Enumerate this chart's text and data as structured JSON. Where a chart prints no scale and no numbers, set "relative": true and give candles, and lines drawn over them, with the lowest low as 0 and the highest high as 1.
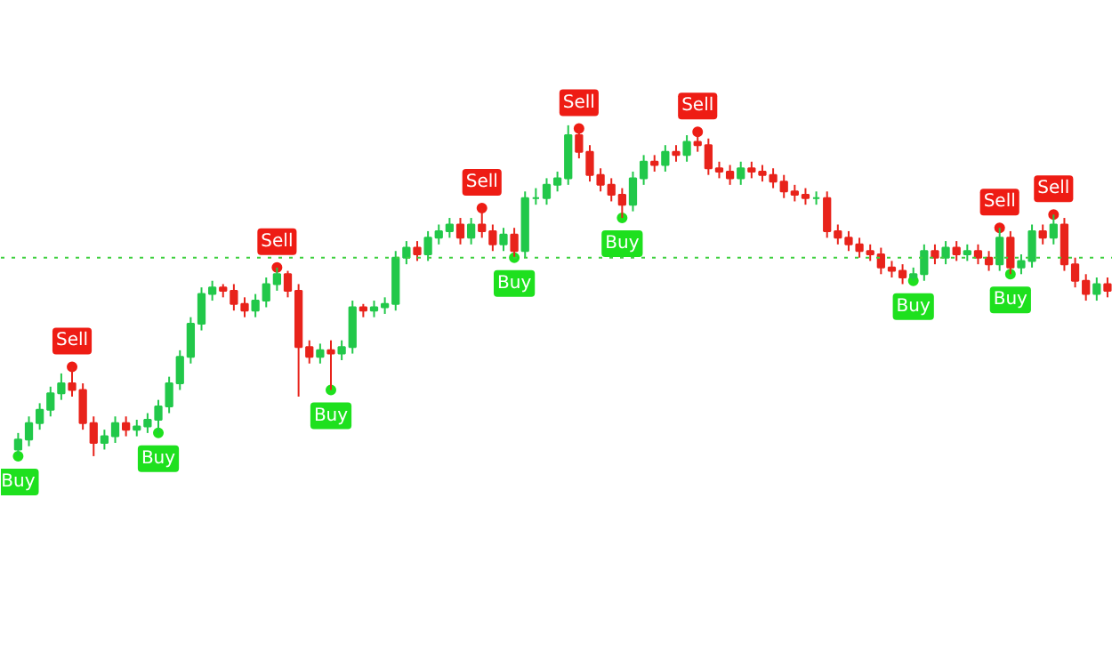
{
  "chart_data": {
    "type": "candlestick",
    "relative": true,
    "categories": [
      null,
      null,
      null,
      null,
      null,
      null,
      null,
      null,
      null,
      null,
      null,
      null,
      null,
      null,
      null,
      null,
      null,
      null,
      null,
      null,
      null,
      null,
      null,
      null,
      null,
      null,
      null,
      null,
      null,
      null,
      null,
      null,
      null,
      null,
      null,
      null,
      null,
      null,
      null,
      null,
      null,
      null,
      null,
      null,
      null,
      null,
      null,
      null,
      null,
      null,
      null,
      null,
      null,
      null,
      null,
      null,
      null,
      null,
      null,
      null,
      null,
      null,
      null,
      null,
      null,
      null,
      null,
      null,
      null,
      null,
      null,
      null,
      null,
      null,
      null,
      null,
      null,
      null,
      null,
      null,
      null,
      null,
      null,
      null,
      null,
      null,
      null,
      null,
      null,
      null,
      null,
      null,
      null,
      null,
      null,
      null,
      null,
      null,
      null,
      null,
      null,
      null
    ],
    "ohlc": [
      [
        0.02,
        0.07,
        0.0,
        0.05
      ],
      [
        0.05,
        0.12,
        0.03,
        0.1
      ],
      [
        0.1,
        0.16,
        0.08,
        0.14
      ],
      [
        0.14,
        0.21,
        0.12,
        0.19
      ],
      [
        0.19,
        0.25,
        0.17,
        0.22
      ],
      [
        0.22,
        0.27,
        0.18,
        0.2
      ],
      [
        0.2,
        0.22,
        0.08,
        0.1
      ],
      [
        0.1,
        0.12,
        0.0,
        0.04
      ],
      [
        0.04,
        0.08,
        0.02,
        0.06
      ],
      [
        0.06,
        0.12,
        0.04,
        0.1
      ],
      [
        0.1,
        0.12,
        0.06,
        0.08
      ],
      [
        0.08,
        0.11,
        0.06,
        0.09
      ],
      [
        0.09,
        0.13,
        0.07,
        0.11
      ],
      [
        0.11,
        0.17,
        0.07,
        0.15
      ],
      [
        0.15,
        0.24,
        0.13,
        0.22
      ],
      [
        0.22,
        0.32,
        0.2,
        0.3
      ],
      [
        0.3,
        0.42,
        0.28,
        0.4
      ],
      [
        0.4,
        0.51,
        0.38,
        0.49
      ],
      [
        0.49,
        0.53,
        0.47,
        0.51
      ],
      [
        0.51,
        0.52,
        0.48,
        0.5
      ],
      [
        0.5,
        0.52,
        0.44,
        0.46
      ],
      [
        0.46,
        0.48,
        0.42,
        0.44
      ],
      [
        0.44,
        0.49,
        0.42,
        0.47
      ],
      [
        0.47,
        0.54,
        0.45,
        0.52
      ],
      [
        0.52,
        0.57,
        0.5,
        0.55
      ],
      [
        0.55,
        0.56,
        0.48,
        0.5
      ],
      [
        0.5,
        0.52,
        0.18,
        0.33
      ],
      [
        0.33,
        0.35,
        0.28,
        0.3
      ],
      [
        0.3,
        0.34,
        0.28,
        0.32
      ],
      [
        0.32,
        0.35,
        0.2,
        0.31
      ],
      [
        0.31,
        0.35,
        0.29,
        0.33
      ],
      [
        0.33,
        0.47,
        0.31,
        0.45
      ],
      [
        0.45,
        0.46,
        0.42,
        0.44
      ],
      [
        0.44,
        0.47,
        0.42,
        0.45
      ],
      [
        0.45,
        0.48,
        0.43,
        0.46
      ],
      [
        0.46,
        0.62,
        0.44,
        0.6
      ],
      [
        0.6,
        0.65,
        0.58,
        0.63
      ],
      [
        0.63,
        0.65,
        0.59,
        0.61
      ],
      [
        0.61,
        0.68,
        0.59,
        0.66
      ],
      [
        0.66,
        0.7,
        0.64,
        0.68
      ],
      [
        0.68,
        0.72,
        0.66,
        0.7
      ],
      [
        0.7,
        0.72,
        0.64,
        0.66
      ],
      [
        0.66,
        0.72,
        0.64,
        0.7
      ],
      [
        0.7,
        0.75,
        0.66,
        0.68
      ],
      [
        0.68,
        0.7,
        0.62,
        0.64
      ],
      [
        0.64,
        0.69,
        0.62,
        0.67
      ],
      [
        0.67,
        0.69,
        0.6,
        0.62
      ],
      [
        0.62,
        0.8,
        0.6,
        0.78
      ],
      [
        0.78,
        0.81,
        0.76,
        0.78
      ],
      [
        0.78,
        0.84,
        0.76,
        0.82
      ],
      [
        0.82,
        0.86,
        0.8,
        0.84
      ],
      [
        0.84,
        1.0,
        0.82,
        0.97
      ],
      [
        0.97,
        0.99,
        0.9,
        0.92
      ],
      [
        0.92,
        0.94,
        0.83,
        0.85
      ],
      [
        0.85,
        0.87,
        0.8,
        0.82
      ],
      [
        0.82,
        0.84,
        0.77,
        0.79
      ],
      [
        0.79,
        0.81,
        0.72,
        0.76
      ],
      [
        0.76,
        0.86,
        0.74,
        0.84
      ],
      [
        0.84,
        0.91,
        0.82,
        0.89
      ],
      [
        0.89,
        0.91,
        0.86,
        0.88
      ],
      [
        0.88,
        0.94,
        0.86,
        0.92
      ],
      [
        0.92,
        0.94,
        0.89,
        0.91
      ],
      [
        0.91,
        0.97,
        0.89,
        0.95
      ],
      [
        0.95,
        0.98,
        0.92,
        0.94
      ],
      [
        0.94,
        0.96,
        0.85,
        0.87
      ],
      [
        0.87,
        0.89,
        0.84,
        0.86
      ],
      [
        0.86,
        0.88,
        0.82,
        0.84
      ],
      [
        0.84,
        0.89,
        0.82,
        0.87
      ],
      [
        0.87,
        0.89,
        0.84,
        0.86
      ],
      [
        0.86,
        0.88,
        0.83,
        0.85
      ],
      [
        0.85,
        0.87,
        0.81,
        0.83
      ],
      [
        0.83,
        0.85,
        0.78,
        0.8
      ],
      [
        0.8,
        0.82,
        0.77,
        0.79
      ],
      [
        0.79,
        0.81,
        0.76,
        0.78
      ],
      [
        0.78,
        0.8,
        0.76,
        0.78
      ],
      [
        0.78,
        0.8,
        0.66,
        0.68
      ],
      [
        0.68,
        0.7,
        0.64,
        0.66
      ],
      [
        0.66,
        0.68,
        0.62,
        0.64
      ],
      [
        0.64,
        0.66,
        0.6,
        0.62
      ],
      [
        0.62,
        0.64,
        0.59,
        0.61
      ],
      [
        0.61,
        0.63,
        0.55,
        0.57
      ],
      [
        0.57,
        0.59,
        0.54,
        0.56
      ],
      [
        0.56,
        0.58,
        0.52,
        0.54
      ],
      [
        0.54,
        0.57,
        0.53,
        0.55
      ],
      [
        0.55,
        0.64,
        0.53,
        0.62
      ],
      [
        0.62,
        0.64,
        0.58,
        0.6
      ],
      [
        0.6,
        0.65,
        0.58,
        0.63
      ],
      [
        0.63,
        0.65,
        0.59,
        0.61
      ],
      [
        0.61,
        0.64,
        0.59,
        0.62
      ],
      [
        0.62,
        0.64,
        0.58,
        0.6
      ],
      [
        0.6,
        0.62,
        0.56,
        0.58
      ],
      [
        0.58,
        0.69,
        0.56,
        0.66
      ],
      [
        0.66,
        0.68,
        0.55,
        0.57
      ],
      [
        0.57,
        0.61,
        0.55,
        0.59
      ],
      [
        0.59,
        0.7,
        0.57,
        0.68
      ],
      [
        0.68,
        0.7,
        0.64,
        0.66
      ],
      [
        0.66,
        0.73,
        0.64,
        0.7
      ],
      [
        0.7,
        0.72,
        0.56,
        0.58
      ],
      [
        0.58,
        0.6,
        0.51,
        0.53
      ],
      [
        0.53,
        0.55,
        0.47,
        0.49
      ],
      [
        0.49,
        0.54,
        0.47,
        0.52
      ],
      [
        0.52,
        0.54,
        0.48,
        0.5
      ]
    ],
    "series": [
      {
        "name": "Sell",
        "type": "scatter",
        "color": "#ee1c14",
        "values": [
          null,
          null,
          null,
          null,
          null,
          0.27,
          null,
          null,
          null,
          null,
          null,
          null,
          null,
          null,
          null,
          null,
          null,
          null,
          null,
          null,
          null,
          null,
          null,
          null,
          0.57,
          null,
          null,
          null,
          null,
          null,
          null,
          null,
          null,
          null,
          null,
          null,
          null,
          null,
          null,
          null,
          null,
          null,
          null,
          0.75,
          null,
          null,
          null,
          null,
          null,
          null,
          null,
          null,
          0.99,
          null,
          null,
          null,
          null,
          null,
          null,
          null,
          null,
          null,
          null,
          0.98,
          null,
          null,
          null,
          null,
          null,
          null,
          null,
          null,
          null,
          null,
          null,
          null,
          null,
          null,
          null,
          null,
          null,
          null,
          null,
          null,
          null,
          null,
          null,
          null,
          null,
          null,
          null,
          0.69,
          null,
          null,
          null,
          null,
          0.73,
          null,
          null,
          null,
          null,
          null
        ]
      },
      {
        "name": "Buy",
        "type": "scatter",
        "color": "#1ee01e",
        "values": [
          0.0,
          null,
          null,
          null,
          null,
          null,
          null,
          null,
          null,
          null,
          null,
          null,
          null,
          0.07,
          null,
          null,
          null,
          null,
          null,
          null,
          null,
          null,
          null,
          null,
          null,
          null,
          null,
          null,
          null,
          0.2,
          null,
          null,
          null,
          null,
          null,
          null,
          null,
          null,
          null,
          null,
          null,
          null,
          null,
          null,
          null,
          null,
          0.6,
          null,
          null,
          null,
          null,
          null,
          null,
          null,
          null,
          null,
          0.72,
          null,
          null,
          null,
          null,
          null,
          null,
          null,
          null,
          null,
          null,
          null,
          null,
          null,
          null,
          null,
          null,
          null,
          null,
          null,
          null,
          null,
          null,
          null,
          null,
          null,
          null,
          0.53,
          null,
          null,
          null,
          null,
          null,
          null,
          null,
          null,
          0.55,
          null,
          null,
          null,
          null,
          null,
          null,
          null,
          null,
          null
        ]
      }
    ],
    "ref_lines": [
      {
        "axis": "y",
        "value": 0.6,
        "label": null,
        "color": "#3fcf3f",
        "line_style": "dotted"
      }
    ]
  }
}
